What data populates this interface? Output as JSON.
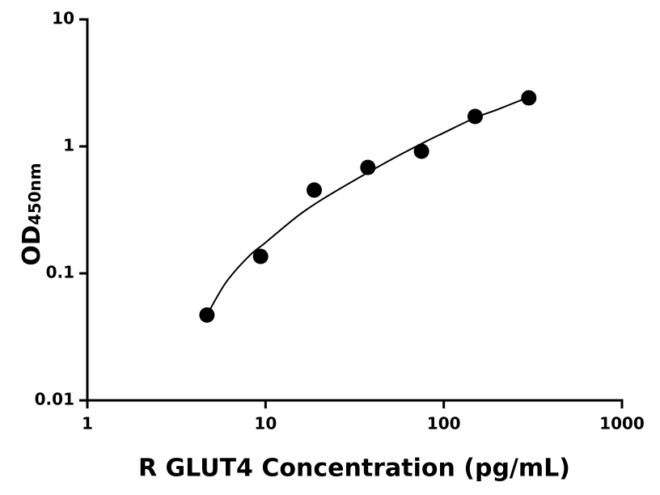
{
  "chart_data": {
    "type": "scatter",
    "xlabel": "R GLUT4 Concentration (pg/mL)",
    "ylabel": "OD",
    "ylabel_subscript": "450nm",
    "xscale": "log",
    "yscale": "log",
    "xlim": [
      1,
      1000
    ],
    "ylim": [
      0.01,
      10
    ],
    "xticks": [
      1,
      10,
      100,
      1000
    ],
    "yticks": [
      0.01,
      0.1,
      1,
      10
    ],
    "series": [
      {
        "style": "markers",
        "color": "#000000",
        "x": [
          4.69,
          9.38,
          18.75,
          37.5,
          75,
          150,
          300
        ],
        "values": [
          0.047,
          0.136,
          0.453,
          0.683,
          0.916,
          1.72,
          2.41
        ]
      },
      {
        "style": "line",
        "color": "#000000",
        "x": [
          4.69,
          6,
          8,
          10,
          15,
          20,
          30,
          50,
          75,
          100,
          150,
          200,
          300
        ],
        "values": [
          0.047,
          0.085,
          0.135,
          0.175,
          0.28,
          0.37,
          0.52,
          0.78,
          1.05,
          1.28,
          1.68,
          1.95,
          2.45
        ]
      }
    ]
  }
}
